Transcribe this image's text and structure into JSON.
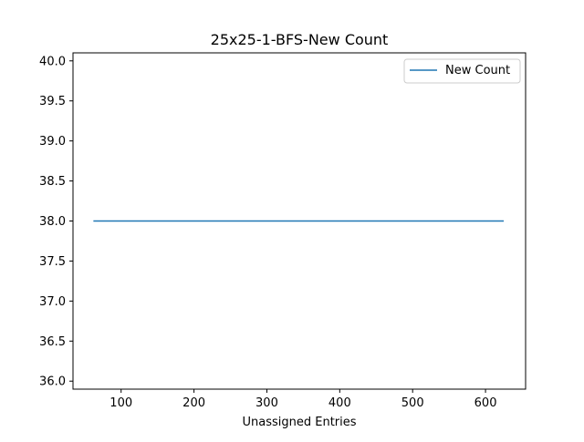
{
  "chart_data": {
    "type": "line",
    "title": "25x25-1-BFS-New Count",
    "xlabel": "Unassigned Entries",
    "ylabel": "",
    "xlim": [
      34,
      655
    ],
    "ylim": [
      35.9,
      40.1
    ],
    "xticks": [
      100,
      200,
      300,
      400,
      500,
      600
    ],
    "xtick_labels": [
      "100",
      "200",
      "300",
      "400",
      "500",
      "600"
    ],
    "yticks": [
      36.0,
      36.5,
      37.0,
      37.5,
      38.0,
      38.5,
      39.0,
      39.5,
      40.0
    ],
    "ytick_labels": [
      "36.0",
      "36.5",
      "37.0",
      "37.5",
      "38.0",
      "38.5",
      "39.0",
      "39.5",
      "40.0"
    ],
    "grid": false,
    "legend_position": "top-right",
    "series": [
      {
        "name": "New Count",
        "color": "#1f77b4",
        "x": [
          62,
          625
        ],
        "y": [
          38.0,
          38.0
        ]
      }
    ]
  }
}
